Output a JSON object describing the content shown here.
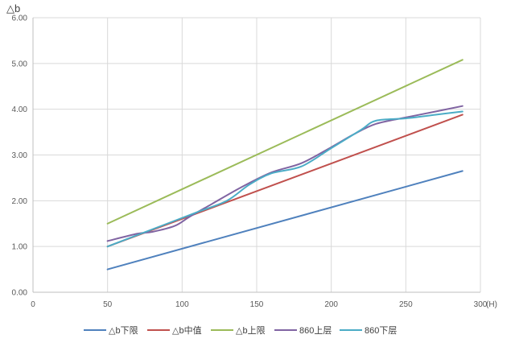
{
  "chart_data": {
    "type": "line",
    "title": "",
    "ylabel": "△b",
    "xlabel_unit": "(H)",
    "xlim": [
      0,
      300
    ],
    "ylim": [
      0,
      6
    ],
    "x_ticks": [
      0,
      50,
      100,
      150,
      200,
      250,
      300
    ],
    "x_tick_labels": [
      "0",
      "50",
      "100",
      "150",
      "200",
      "250",
      "300"
    ],
    "y_ticks": [
      0,
      1,
      2,
      3,
      4,
      5,
      6
    ],
    "y_tick_labels": [
      "0.00",
      "1.00",
      "2.00",
      "3.00",
      "4.00",
      "5.00",
      "6.00"
    ],
    "grid": true,
    "legend_position": "bottom",
    "series": [
      {
        "name": "△b下限",
        "color": "#4f81bd",
        "x": [
          50,
          288
        ],
        "y": [
          0.5,
          2.65
        ]
      },
      {
        "name": "△b中值",
        "color": "#c0504d",
        "x": [
          50,
          288
        ],
        "y": [
          1.0,
          3.88
        ]
      },
      {
        "name": "△b上限",
        "color": "#9bbb59",
        "x": [
          50,
          288
        ],
        "y": [
          1.5,
          5.08
        ]
      },
      {
        "name": "860上层",
        "color": "#8064a2",
        "x": [
          50,
          70,
          80,
          95,
          105,
          120,
          140,
          160,
          180,
          200,
          215,
          230,
          250,
          270,
          288
        ],
        "y": [
          1.12,
          1.28,
          1.32,
          1.45,
          1.65,
          1.93,
          2.3,
          2.62,
          2.82,
          3.17,
          3.45,
          3.68,
          3.82,
          3.95,
          4.07
        ]
      },
      {
        "name": "860下层",
        "color": "#4bacc6",
        "x": [
          50,
          70,
          90,
          110,
          130,
          145,
          160,
          180,
          200,
          220,
          230,
          250,
          270,
          288
        ],
        "y": [
          1.0,
          1.25,
          1.5,
          1.75,
          2.0,
          2.35,
          2.6,
          2.75,
          3.15,
          3.55,
          3.75,
          3.8,
          3.88,
          3.95
        ]
      }
    ]
  }
}
